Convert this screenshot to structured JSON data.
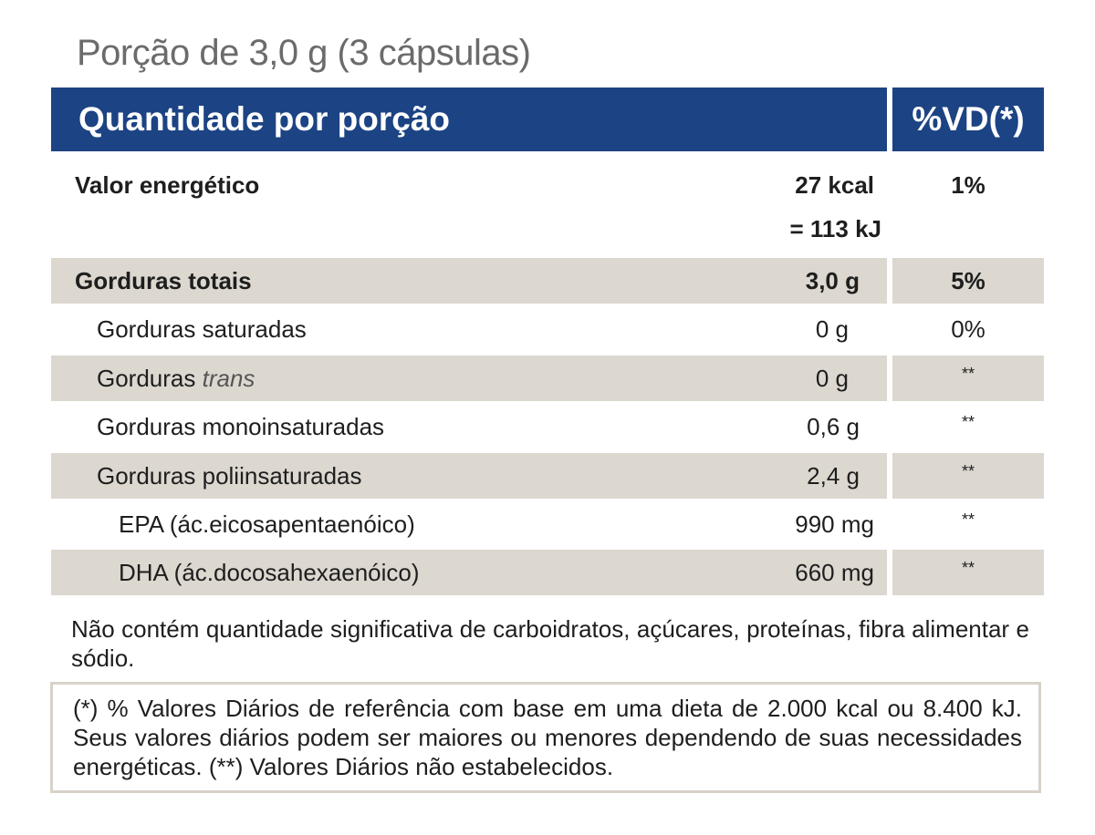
{
  "portion": "Porção de 3,0 g (3 cápsulas)",
  "header": {
    "quantity": "Quantidade por porção",
    "vd": "%VD(*)"
  },
  "energy": {
    "label": "Valor energético",
    "kcal": "27 kcal",
    "kj": "= 113 kJ",
    "vd": "1%"
  },
  "rows": [
    {
      "label": "Gorduras totais",
      "amount": "3,0 g",
      "vd": "5%"
    },
    {
      "label": "Gorduras saturadas",
      "amount": "0 g",
      "vd": "0%"
    },
    {
      "label_prefix": "Gorduras ",
      "label_italic": "trans",
      "amount": "0 g",
      "vd": "**"
    },
    {
      "label": "Gorduras monoinsaturadas",
      "amount": "0,6 g",
      "vd": "**"
    },
    {
      "label": "Gorduras poliinsaturadas",
      "amount": "2,4 g",
      "vd": "**"
    },
    {
      "label": "EPA (ác.eicosapentaenóico)",
      "amount": "990 mg",
      "vd": "**"
    },
    {
      "label": "DHA (ác.docosahexaenóico)",
      "amount": "660 mg",
      "vd": "**"
    }
  ],
  "note": "Não contém quantidade significativa de carboidratos, açúcares, proteínas, fibra alimentar e sódio.",
  "footnote": "(*) % Valores Diários de referência com base em uma dieta de 2.000 kcal ou 8.400 kJ. Seus valores diários podem ser maiores ou menores dependendo de suas necessidades energéticas. (**) Valores Diários não estabelecidos."
}
